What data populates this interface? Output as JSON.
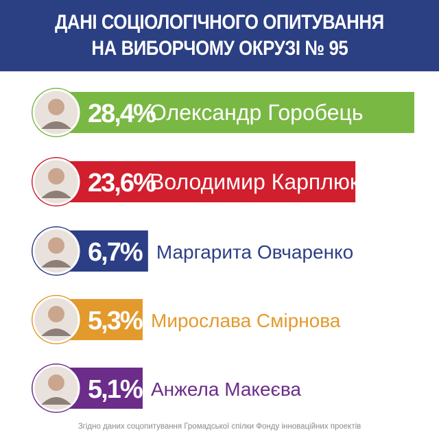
{
  "header": {
    "title_line1": "ДАНІ СОЦІОЛОГІЧНОГО ОПИТУВАННЯ",
    "title_line2": "НА ВИБОРЧОМУ ОКРУЗІ № 95"
  },
  "footer": {
    "source": "Згідно даних соцопитування Громадської спілки Фонду інноваційних проектів"
  },
  "chart_data": {
    "type": "bar",
    "orientation": "horizontal",
    "title": "ДАНІ СОЦІОЛОГІЧНОГО ОПИТУВАННЯ НА ВИБОРЧОМУ ОКРУЗІ № 95",
    "categories": [
      "Олександр Горобець",
      "Володимир Карплюк",
      "Маргарита Овчаренко",
      "Мирослава Смірнова",
      "Анжела Макеєва"
    ],
    "values": [
      28.4,
      23.6,
      6.7,
      5.3,
      5.1
    ],
    "value_labels": [
      "28,4%",
      "23,6%",
      "6,7%",
      "5,3%",
      "5,1%"
    ],
    "colors": [
      "#7ab844",
      "#d11f2e",
      "#2c3f86",
      "#e39a2d",
      "#6b2c8a"
    ],
    "unit": "%",
    "grid": false,
    "legend": "none"
  }
}
